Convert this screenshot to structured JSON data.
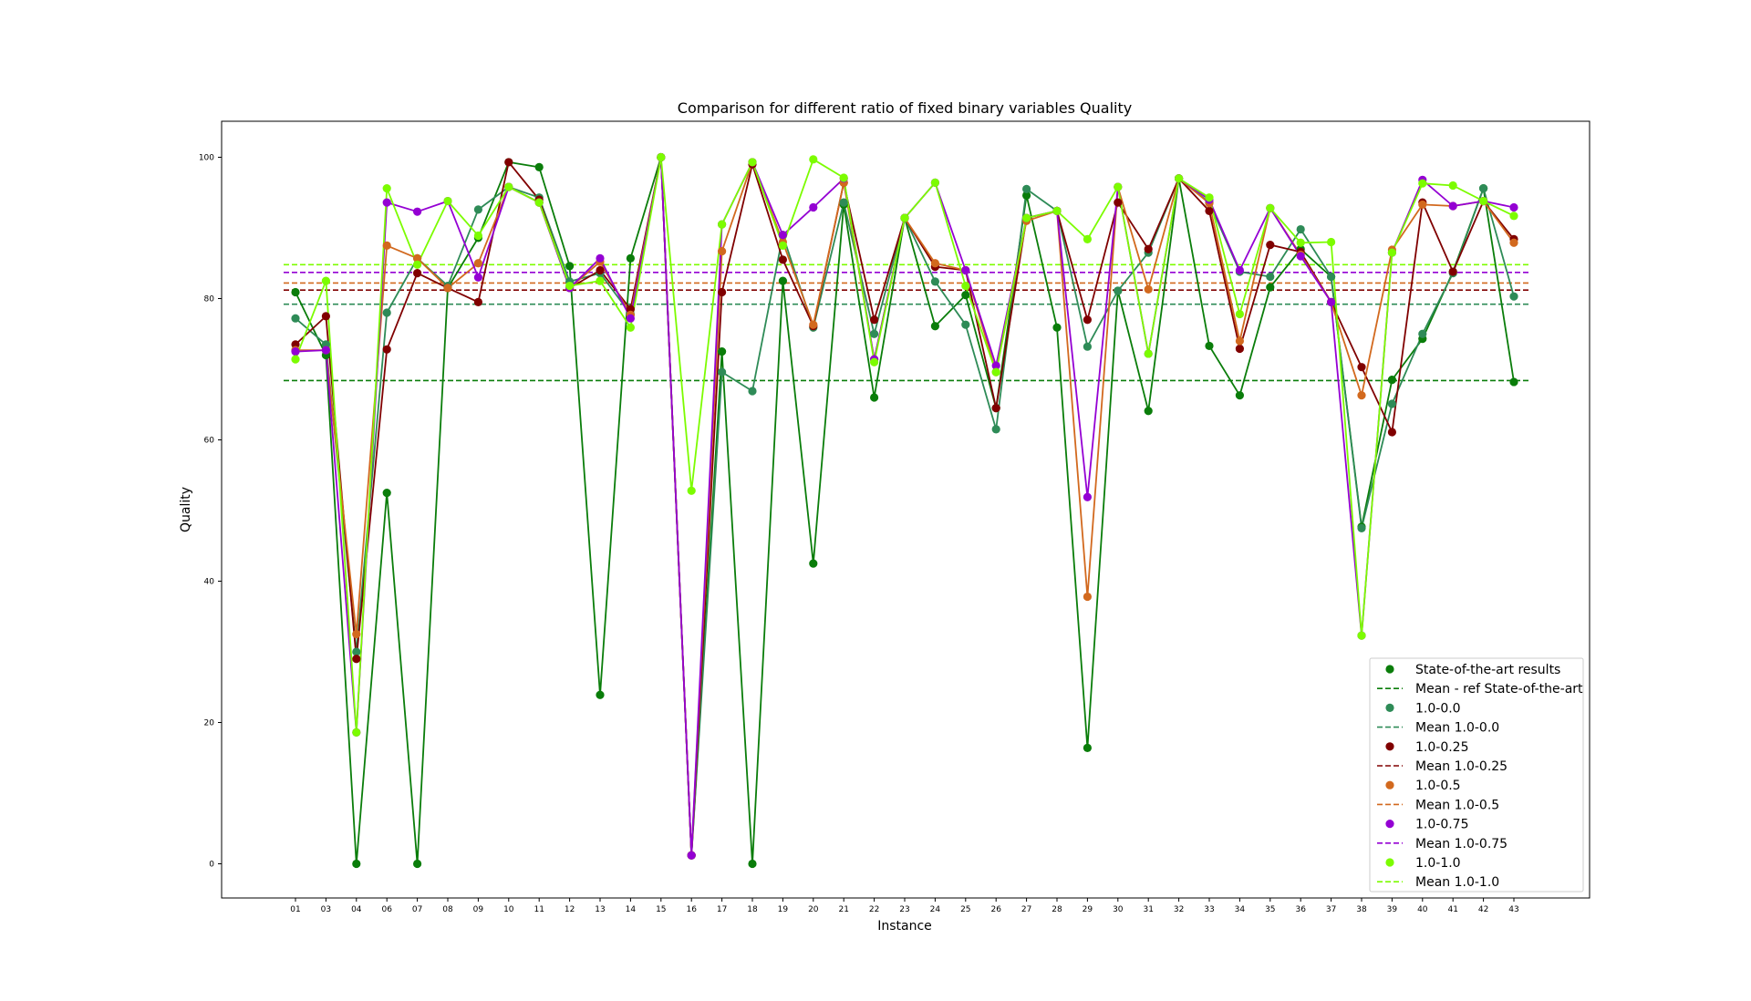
{
  "chart_data": {
    "type": "line",
    "title": "Comparison for different ratio of fixed binary variables Quality",
    "xlabel": "Instance",
    "ylabel": "Quality",
    "ylim": [
      -5,
      105
    ],
    "yticks": [
      0,
      20,
      40,
      60,
      80,
      100
    ],
    "categories": [
      "01",
      "03",
      "04",
      "06",
      "07",
      "08",
      "09",
      "10",
      "11",
      "12",
      "13",
      "14",
      "15",
      "16",
      "17",
      "18",
      "19",
      "20",
      "21",
      "22",
      "23",
      "24",
      "25",
      "26",
      "27",
      "28",
      "29",
      "30",
      "31",
      "32",
      "33",
      "34",
      "35",
      "36",
      "37",
      "38",
      "39",
      "40",
      "41",
      "42",
      "43"
    ],
    "legend_position": "lower-right",
    "series": [
      {
        "name": "State-of-the-art results",
        "mean_label": "Mean - ref State-of-the-art",
        "color": "#0a7d0a",
        "mean": 68.4,
        "values": [
          80.9,
          72.0,
          0.0,
          52.5,
          0.0,
          81.5,
          88.6,
          99.3,
          98.6,
          84.6,
          23.9,
          85.7,
          100.0,
          1.2,
          72.5,
          0.0,
          82.5,
          42.5,
          93.3,
          66.0,
          91.4,
          76.1,
          80.5,
          64.5,
          94.6,
          75.9,
          16.4,
          81.1,
          64.1,
          97.0,
          73.3,
          66.3,
          81.6,
          87.0,
          83.1,
          47.7,
          68.5,
          74.3,
          83.8,
          95.6,
          68.2
        ]
      },
      {
        "name": "1.0-0.0",
        "mean_label": "Mean 1.0-0.0",
        "color": "#2e8b57",
        "mean": 79.2,
        "values": [
          77.2,
          73.5,
          30.0,
          78.0,
          85.7,
          81.8,
          92.6,
          95.8,
          94.3,
          82.4,
          83.6,
          77.8,
          100.0,
          1.2,
          69.6,
          66.9,
          89.0,
          75.9,
          93.6,
          75.0,
          91.4,
          82.4,
          76.3,
          61.5,
          95.5,
          92.4,
          73.2,
          81.1,
          86.5,
          97.0,
          93.6,
          83.8,
          83.1,
          89.8,
          83.1,
          47.5,
          65.1,
          75.0,
          83.6,
          95.6,
          80.3
        ]
      },
      {
        "name": "1.0-0.25",
        "mean_label": "Mean 1.0-0.25",
        "color": "#800000",
        "mean": 81.2,
        "values": [
          73.5,
          77.5,
          29.0,
          72.8,
          83.6,
          81.5,
          79.5,
          99.3,
          94.0,
          81.5,
          84.0,
          78.5,
          100.0,
          1.2,
          80.9,
          99.0,
          85.5,
          76.1,
          96.4,
          77.0,
          91.4,
          84.5,
          84.0,
          64.5,
          91.4,
          92.4,
          77.0,
          93.6,
          87.0,
          97.0,
          92.4,
          72.9,
          87.6,
          86.6,
          79.5,
          70.3,
          61.1,
          93.6,
          83.8,
          93.8,
          88.4
        ]
      },
      {
        "name": "1.0-0.5",
        "mean_label": "Mean 1.0-0.5",
        "color": "#d2691e",
        "mean": 82.2,
        "values": [
          72.7,
          72.7,
          32.5,
          87.5,
          85.7,
          81.5,
          85.0,
          95.8,
          93.6,
          81.5,
          85.2,
          77.7,
          100.0,
          1.2,
          86.7,
          99.3,
          88.0,
          76.3,
          96.4,
          71.4,
          91.4,
          85.0,
          84.0,
          69.6,
          91.0,
          92.4,
          37.8,
          95.8,
          81.3,
          97.0,
          93.5,
          74.0,
          92.8,
          86.2,
          79.5,
          66.3,
          86.9,
          93.3,
          93.1,
          93.8,
          87.9
        ]
      },
      {
        "name": "1.0-0.75",
        "mean_label": "Mean 1.0-0.75",
        "color": "#9400d3",
        "mean": 83.7,
        "values": [
          72.5,
          72.7,
          18.6,
          93.6,
          92.3,
          93.8,
          83.0,
          95.8,
          93.6,
          81.5,
          85.7,
          77.2,
          100.0,
          1.2,
          90.5,
          99.3,
          89.0,
          92.9,
          97.0,
          71.4,
          91.4,
          96.4,
          84.0,
          70.5,
          91.4,
          92.4,
          51.9,
          95.8,
          72.2,
          97.0,
          94.0,
          84.0,
          92.8,
          86.0,
          79.5,
          32.3,
          86.5,
          96.8,
          93.1,
          93.8,
          92.9
        ]
      },
      {
        "name": "1.0-1.0",
        "mean_label": "Mean 1.0-1.0",
        "color": "#7cfc00",
        "mean": 84.8,
        "values": [
          71.4,
          82.5,
          18.6,
          95.6,
          84.8,
          93.8,
          88.9,
          95.8,
          93.6,
          81.8,
          82.5,
          75.9,
          100.0,
          52.8,
          90.5,
          99.3,
          87.5,
          99.7,
          97.1,
          71.0,
          91.4,
          96.4,
          81.8,
          69.6,
          91.4,
          92.4,
          88.4,
          95.8,
          72.2,
          97.0,
          94.3,
          77.8,
          92.8,
          87.9,
          88.0,
          32.3,
          86.5,
          96.3,
          96.0,
          93.8,
          91.7
        ]
      }
    ]
  }
}
